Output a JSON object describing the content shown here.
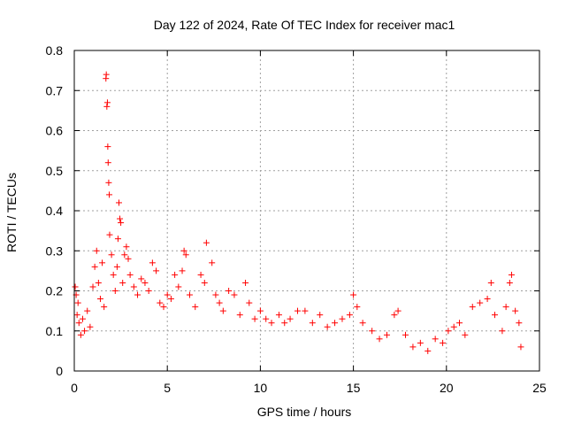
{
  "chart_data": {
    "type": "scatter",
    "title": "Day 122 of 2024, Rate Of TEC Index for receiver mac1",
    "xlabel": "GPS time / hours",
    "ylabel": "ROTI / TECUs",
    "xlim": [
      0,
      25
    ],
    "ylim": [
      0,
      0.8
    ],
    "x_ticks": [
      0,
      5,
      10,
      15,
      20,
      25
    ],
    "x_tick_labels": [
      "0",
      "5",
      "10",
      "15",
      "20",
      "25"
    ],
    "y_ticks": [
      0,
      0.1,
      0.2,
      0.3,
      0.4,
      0.5,
      0.6,
      0.7,
      0.8
    ],
    "y_tick_labels": [
      "0",
      "0.1",
      "0.2",
      "0.3",
      "0.4",
      "0.5",
      "0.6",
      "0.7",
      "0.8"
    ],
    "grid": true,
    "marker": "+",
    "marker_color": "#ff0000",
    "series": [
      {
        "name": "ROTI",
        "points": [
          [
            0.05,
            0.21
          ],
          [
            0.1,
            0.19
          ],
          [
            0.15,
            0.14
          ],
          [
            0.2,
            0.17
          ],
          [
            0.25,
            0.12
          ],
          [
            0.35,
            0.09
          ],
          [
            0.45,
            0.13
          ],
          [
            0.55,
            0.1
          ],
          [
            0.7,
            0.15
          ],
          [
            0.85,
            0.11
          ],
          [
            1.0,
            0.21
          ],
          [
            1.1,
            0.26
          ],
          [
            1.2,
            0.3
          ],
          [
            1.3,
            0.22
          ],
          [
            1.4,
            0.18
          ],
          [
            1.5,
            0.27
          ],
          [
            1.6,
            0.16
          ],
          [
            1.7,
            0.73
          ],
          [
            1.72,
            0.74
          ],
          [
            1.75,
            0.66
          ],
          [
            1.78,
            0.67
          ],
          [
            1.8,
            0.56
          ],
          [
            1.82,
            0.52
          ],
          [
            1.85,
            0.47
          ],
          [
            1.88,
            0.44
          ],
          [
            1.9,
            0.34
          ],
          [
            2.0,
            0.29
          ],
          [
            2.1,
            0.24
          ],
          [
            2.2,
            0.2
          ],
          [
            2.3,
            0.26
          ],
          [
            2.35,
            0.33
          ],
          [
            2.4,
            0.42
          ],
          [
            2.45,
            0.38
          ],
          [
            2.5,
            0.37
          ],
          [
            2.6,
            0.22
          ],
          [
            2.7,
            0.29
          ],
          [
            2.8,
            0.31
          ],
          [
            2.9,
            0.28
          ],
          [
            3.0,
            0.24
          ],
          [
            3.2,
            0.21
          ],
          [
            3.4,
            0.19
          ],
          [
            3.6,
            0.23
          ],
          [
            3.8,
            0.22
          ],
          [
            4.0,
            0.2
          ],
          [
            4.2,
            0.27
          ],
          [
            4.4,
            0.25
          ],
          [
            4.6,
            0.17
          ],
          [
            4.8,
            0.16
          ],
          [
            5.0,
            0.19
          ],
          [
            5.2,
            0.18
          ],
          [
            5.4,
            0.24
          ],
          [
            5.6,
            0.21
          ],
          [
            5.8,
            0.25
          ],
          [
            5.9,
            0.3
          ],
          [
            6.0,
            0.29
          ],
          [
            6.2,
            0.19
          ],
          [
            6.5,
            0.16
          ],
          [
            6.8,
            0.24
          ],
          [
            7.0,
            0.22
          ],
          [
            7.1,
            0.32
          ],
          [
            7.4,
            0.27
          ],
          [
            7.6,
            0.19
          ],
          [
            7.8,
            0.17
          ],
          [
            8.0,
            0.15
          ],
          [
            8.3,
            0.2
          ],
          [
            8.6,
            0.19
          ],
          [
            8.9,
            0.14
          ],
          [
            9.2,
            0.22
          ],
          [
            9.4,
            0.17
          ],
          [
            9.7,
            0.13
          ],
          [
            10.0,
            0.15
          ],
          [
            10.3,
            0.13
          ],
          [
            10.6,
            0.12
          ],
          [
            11.0,
            0.14
          ],
          [
            11.3,
            0.12
          ],
          [
            11.6,
            0.13
          ],
          [
            12.0,
            0.15
          ],
          [
            12.4,
            0.15
          ],
          [
            12.8,
            0.12
          ],
          [
            13.2,
            0.14
          ],
          [
            13.6,
            0.11
          ],
          [
            14.0,
            0.12
          ],
          [
            14.4,
            0.13
          ],
          [
            14.8,
            0.14
          ],
          [
            15.0,
            0.19
          ],
          [
            15.2,
            0.16
          ],
          [
            15.5,
            0.12
          ],
          [
            16.0,
            0.1
          ],
          [
            16.4,
            0.08
          ],
          [
            16.8,
            0.09
          ],
          [
            17.2,
            0.14
          ],
          [
            17.4,
            0.15
          ],
          [
            17.8,
            0.09
          ],
          [
            18.2,
            0.06
          ],
          [
            18.6,
            0.07
          ],
          [
            19.0,
            0.05
          ],
          [
            19.4,
            0.08
          ],
          [
            19.8,
            0.07
          ],
          [
            20.1,
            0.1
          ],
          [
            20.4,
            0.11
          ],
          [
            20.7,
            0.12
          ],
          [
            21.0,
            0.09
          ],
          [
            21.4,
            0.16
          ],
          [
            21.8,
            0.17
          ],
          [
            22.2,
            0.18
          ],
          [
            22.4,
            0.22
          ],
          [
            22.6,
            0.14
          ],
          [
            23.0,
            0.1
          ],
          [
            23.2,
            0.16
          ],
          [
            23.4,
            0.22
          ],
          [
            23.5,
            0.24
          ],
          [
            23.7,
            0.15
          ],
          [
            23.9,
            0.12
          ],
          [
            24.0,
            0.06
          ]
        ]
      }
    ]
  }
}
